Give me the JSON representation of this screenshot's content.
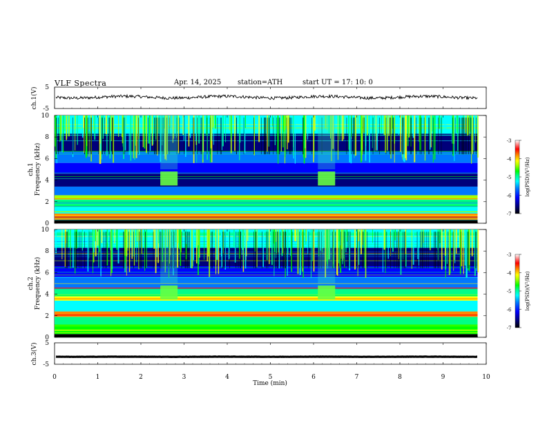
{
  "header": {
    "title": "VLF  Spectra",
    "date": "Apr. 14, 2025",
    "station": "station=ATH",
    "start": "start  UT  =   17: 10: 0"
  },
  "chart_data": [
    {
      "type": "line",
      "panel": "ch1-waveform",
      "ylabel": "ch.1(V)",
      "ylim": [
        -5,
        5
      ],
      "yticks": [
        "5",
        "-5"
      ],
      "xlim": [
        0,
        10
      ],
      "baseline": 0.3,
      "color": "#000000"
    },
    {
      "type": "heatmap",
      "panel": "ch1-spectrogram",
      "ylabel_top": "ch.1",
      "ylabel": "Frequency  (kHz)",
      "ylim": [
        0,
        10
      ],
      "yticks": [
        "0",
        "2",
        "4",
        "6",
        "8",
        "10"
      ],
      "xlim": [
        0,
        10
      ],
      "data_end_min": 9.8,
      "colorbar": {
        "label": "log(PSD)(V²/Hz)",
        "range": [
          -7,
          -3
        ],
        "ticks": [
          "-3",
          "-4",
          "-5",
          "-6",
          "-7"
        ]
      },
      "bursts_min": [
        [
          2.45,
          2.85
        ],
        [
          6.1,
          6.5
        ]
      ],
      "burst_band_khz": [
        3.5,
        4.8
      ]
    },
    {
      "type": "heatmap",
      "panel": "ch2-spectrogram",
      "ylabel_top": "ch.2",
      "ylabel": "Frequency  (kHz)",
      "ylim": [
        0,
        10
      ],
      "yticks": [
        "0",
        "2",
        "4",
        "6",
        "8",
        "10"
      ],
      "xlim": [
        0,
        10
      ],
      "data_end_min": 9.8,
      "colorbar": {
        "label": "log(PSD)(V²/Hz)",
        "range": [
          -7,
          -3
        ],
        "ticks": [
          "-3",
          "-4",
          "-5",
          "-6",
          "-7"
        ]
      },
      "bursts_min": [
        [
          2.45,
          2.85
        ],
        [
          6.1,
          6.5
        ]
      ],
      "burst_band_khz": [
        3.5,
        4.8
      ]
    },
    {
      "type": "line",
      "panel": "ch3-waveform",
      "ylabel": "ch.3(V)",
      "ylim": [
        -5,
        5
      ],
      "yticks": [
        "5",
        "-5"
      ],
      "xlim": [
        0,
        10
      ],
      "baseline": -1.5,
      "color": "#000000"
    }
  ],
  "x_axis": {
    "label": "Time  (min)",
    "ticks": [
      "0",
      "1",
      "2",
      "3",
      "4",
      "5",
      "6",
      "7",
      "8",
      "9",
      "10"
    ]
  },
  "colormap": [
    "#000000",
    "#00007a",
    "#0000ff",
    "#0077ff",
    "#00ffff",
    "#00ff88",
    "#00ff00",
    "#aaff00",
    "#ffff00",
    "#ff8800",
    "#ff0000",
    "#ffffff"
  ]
}
